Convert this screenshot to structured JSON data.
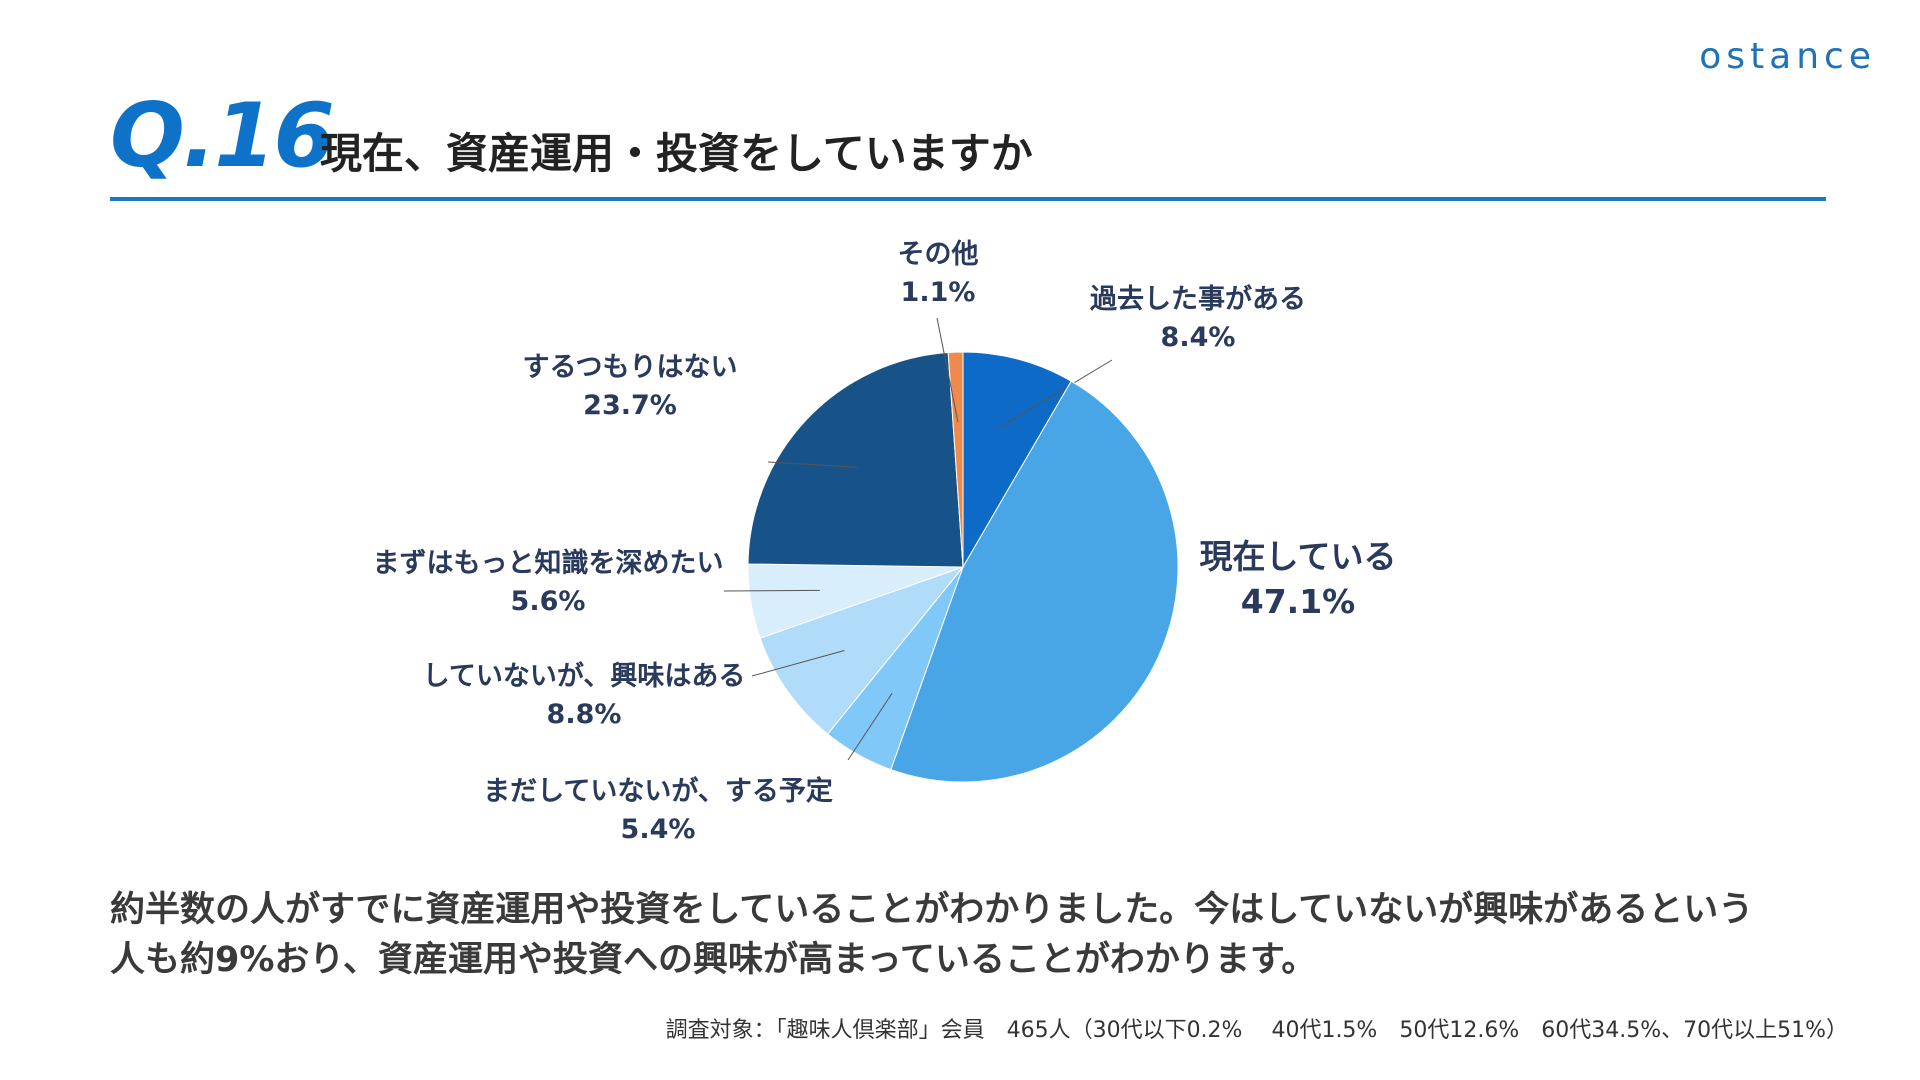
{
  "brand": {
    "logo_text": "ostance"
  },
  "header": {
    "question_number": "Q.16",
    "title": "現在、資産運用・投資をしていますか"
  },
  "chart_data": {
    "type": "pie",
    "slices": [
      {
        "label": "過去した事がある",
        "value": 8.4,
        "display": "8.4%",
        "color": "#0d6ac7"
      },
      {
        "label": "現在している",
        "value": 47.1,
        "display": "47.1%",
        "color": "#48a6e6"
      },
      {
        "label": "まだしていないが、する予定",
        "value": 5.4,
        "display": "5.4%",
        "color": "#80c8f8"
      },
      {
        "label": "していないが、興味はある",
        "value": 8.8,
        "display": "8.8%",
        "color": "#b0dcfa"
      },
      {
        "label": "まずはもっと知識を深めたい",
        "value": 5.6,
        "display": "5.6%",
        "color": "#d8eefc"
      },
      {
        "label": "するつもりはない",
        "value": 23.7,
        "display": "23.7%",
        "color": "#175388"
      },
      {
        "label": "その他",
        "value": 1.1,
        "display": "1.1%",
        "color": "#f08a4c"
      }
    ]
  },
  "summary": {
    "line1": "約半数の人がすでに資産運用や投資をしていることがわかりました。今はしていないが興味があるという",
    "line2": "人も約9%おり、資産運用や投資への興味が高まっていることがわかります。"
  },
  "footnote": "調査対象：「趣味人倶楽部」会員　465人（30代以下0.2%　 40代1.5%　50代12.6%　60代34.5%、70代以上51%）"
}
